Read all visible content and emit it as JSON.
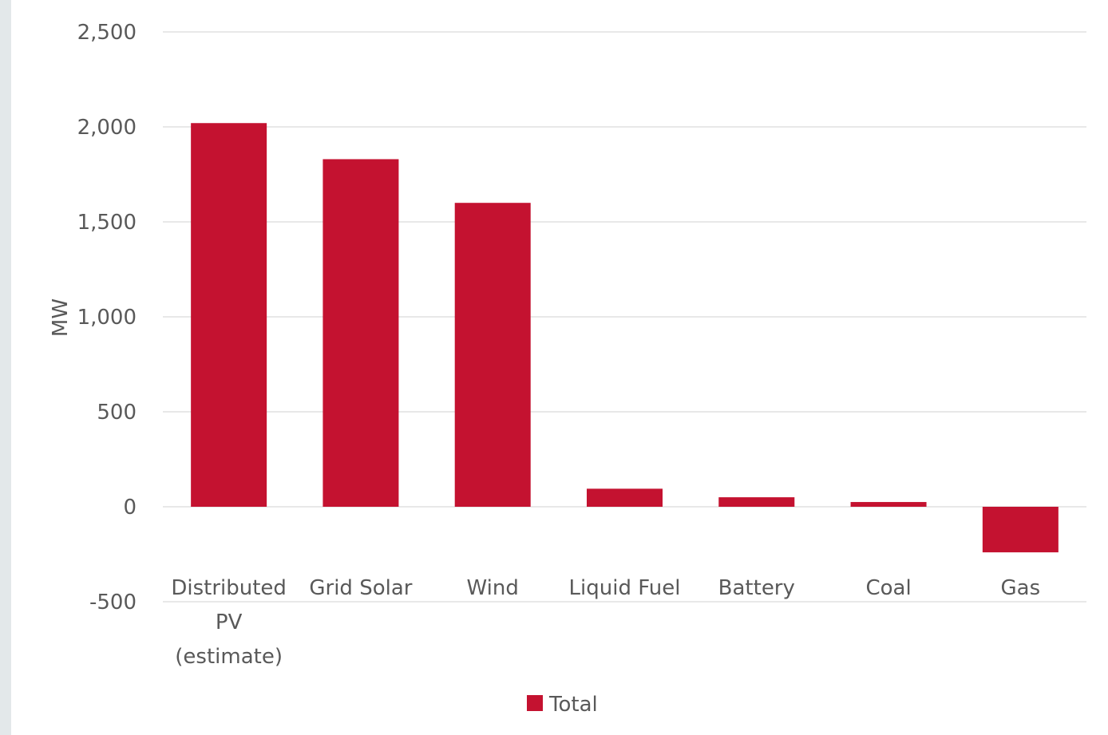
{
  "chart_data": {
    "type": "bar",
    "categories": [
      "Distributed PV (estimate)",
      "Grid Solar",
      "Wind",
      "Liquid Fuel",
      "Battery",
      "Coal",
      "Gas"
    ],
    "category_lines": [
      [
        "Distributed",
        "PV",
        "(estimate)"
      ],
      [
        "Grid Solar"
      ],
      [
        "Wind"
      ],
      [
        "Liquid Fuel"
      ],
      [
        "Battery"
      ],
      [
        "Coal"
      ],
      [
        "Gas"
      ]
    ],
    "series": [
      {
        "name": "Total",
        "values": [
          2020,
          1830,
          1600,
          95,
          50,
          25,
          -240
        ]
      }
    ],
    "title": "",
    "xlabel": "",
    "ylabel": "MW",
    "ylim": [
      -500,
      2500
    ],
    "yticks": [
      -500,
      0,
      500,
      1000,
      1500,
      2000,
      2500
    ],
    "ytick_labels": [
      "-500",
      "0",
      "500",
      "1,000",
      "1,500",
      "2,000",
      "2,500"
    ],
    "grid": true,
    "legend": "bottom",
    "bar_color": "#c41230",
    "grid_color": "#d9d9d9"
  }
}
